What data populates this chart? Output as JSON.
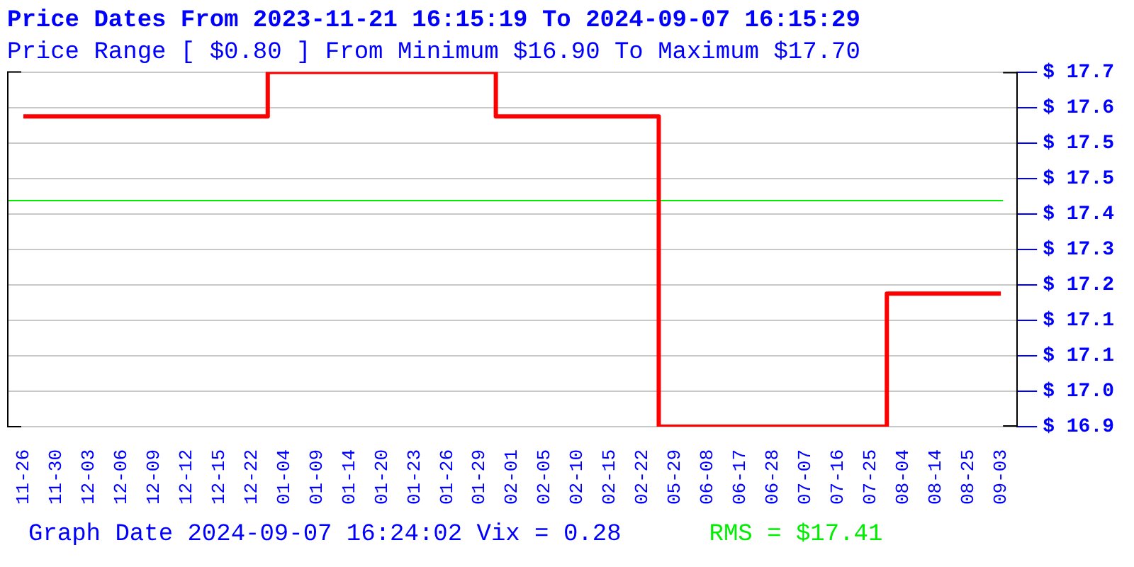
{
  "chart_data": {
    "type": "step",
    "title": "Price Dates From 2023-11-21 16:15:19 To 2024-09-07 16:15:29",
    "subtitle": "Price Range [ $0.80 ] From Minimum $16.90 To Maximum $17.70",
    "categories": [
      "11-26",
      "11-30",
      "12-03",
      "12-06",
      "12-09",
      "12-12",
      "12-15",
      "12-22",
      "01-04",
      "01-09",
      "01-14",
      "01-20",
      "01-23",
      "01-26",
      "01-29",
      "02-01",
      "02-05",
      "02-10",
      "02-15",
      "02-22",
      "05-29",
      "06-08",
      "06-17",
      "06-28",
      "07-07",
      "07-16",
      "07-25",
      "08-04",
      "08-14",
      "08-25",
      "09-03"
    ],
    "series": [
      {
        "color": "#ff0000",
        "values": [
          17.6,
          17.6,
          17.6,
          17.6,
          17.6,
          17.6,
          17.6,
          17.6,
          17.7,
          17.7,
          17.7,
          17.7,
          17.7,
          17.7,
          17.7,
          17.6,
          17.6,
          17.6,
          17.6,
          17.6,
          16.9,
          16.9,
          16.9,
          16.9,
          16.9,
          16.9,
          16.9,
          17.2,
          17.2,
          17.2,
          17.2
        ]
      }
    ],
    "ylim": [
      16.9,
      17.7
    ],
    "yticks": [
      {
        "value": 16.9,
        "label": "$ 16.9"
      },
      {
        "value": 16.98,
        "label": "$ 17.0"
      },
      {
        "value": 17.06,
        "label": "$ 17.1"
      },
      {
        "value": 17.14,
        "label": "$ 17.1"
      },
      {
        "value": 17.22,
        "label": "$ 17.2"
      },
      {
        "value": 17.3,
        "label": "$ 17.3"
      },
      {
        "value": 17.38,
        "label": "$ 17.4"
      },
      {
        "value": 17.46,
        "label": "$ 17.5"
      },
      {
        "value": 17.54,
        "label": "$ 17.5"
      },
      {
        "value": 17.62,
        "label": "$ 17.6"
      },
      {
        "value": 17.7,
        "label": "$ 17.7"
      }
    ],
    "grid": "y",
    "ref_lines": [
      {
        "axis": "y",
        "value": 17.41,
        "label": "RMS = $17.41",
        "color": "#00ee00"
      }
    ],
    "annotations": [
      "Graph Date 2024-09-07 16:24:02 Vix = 0.28"
    ]
  }
}
